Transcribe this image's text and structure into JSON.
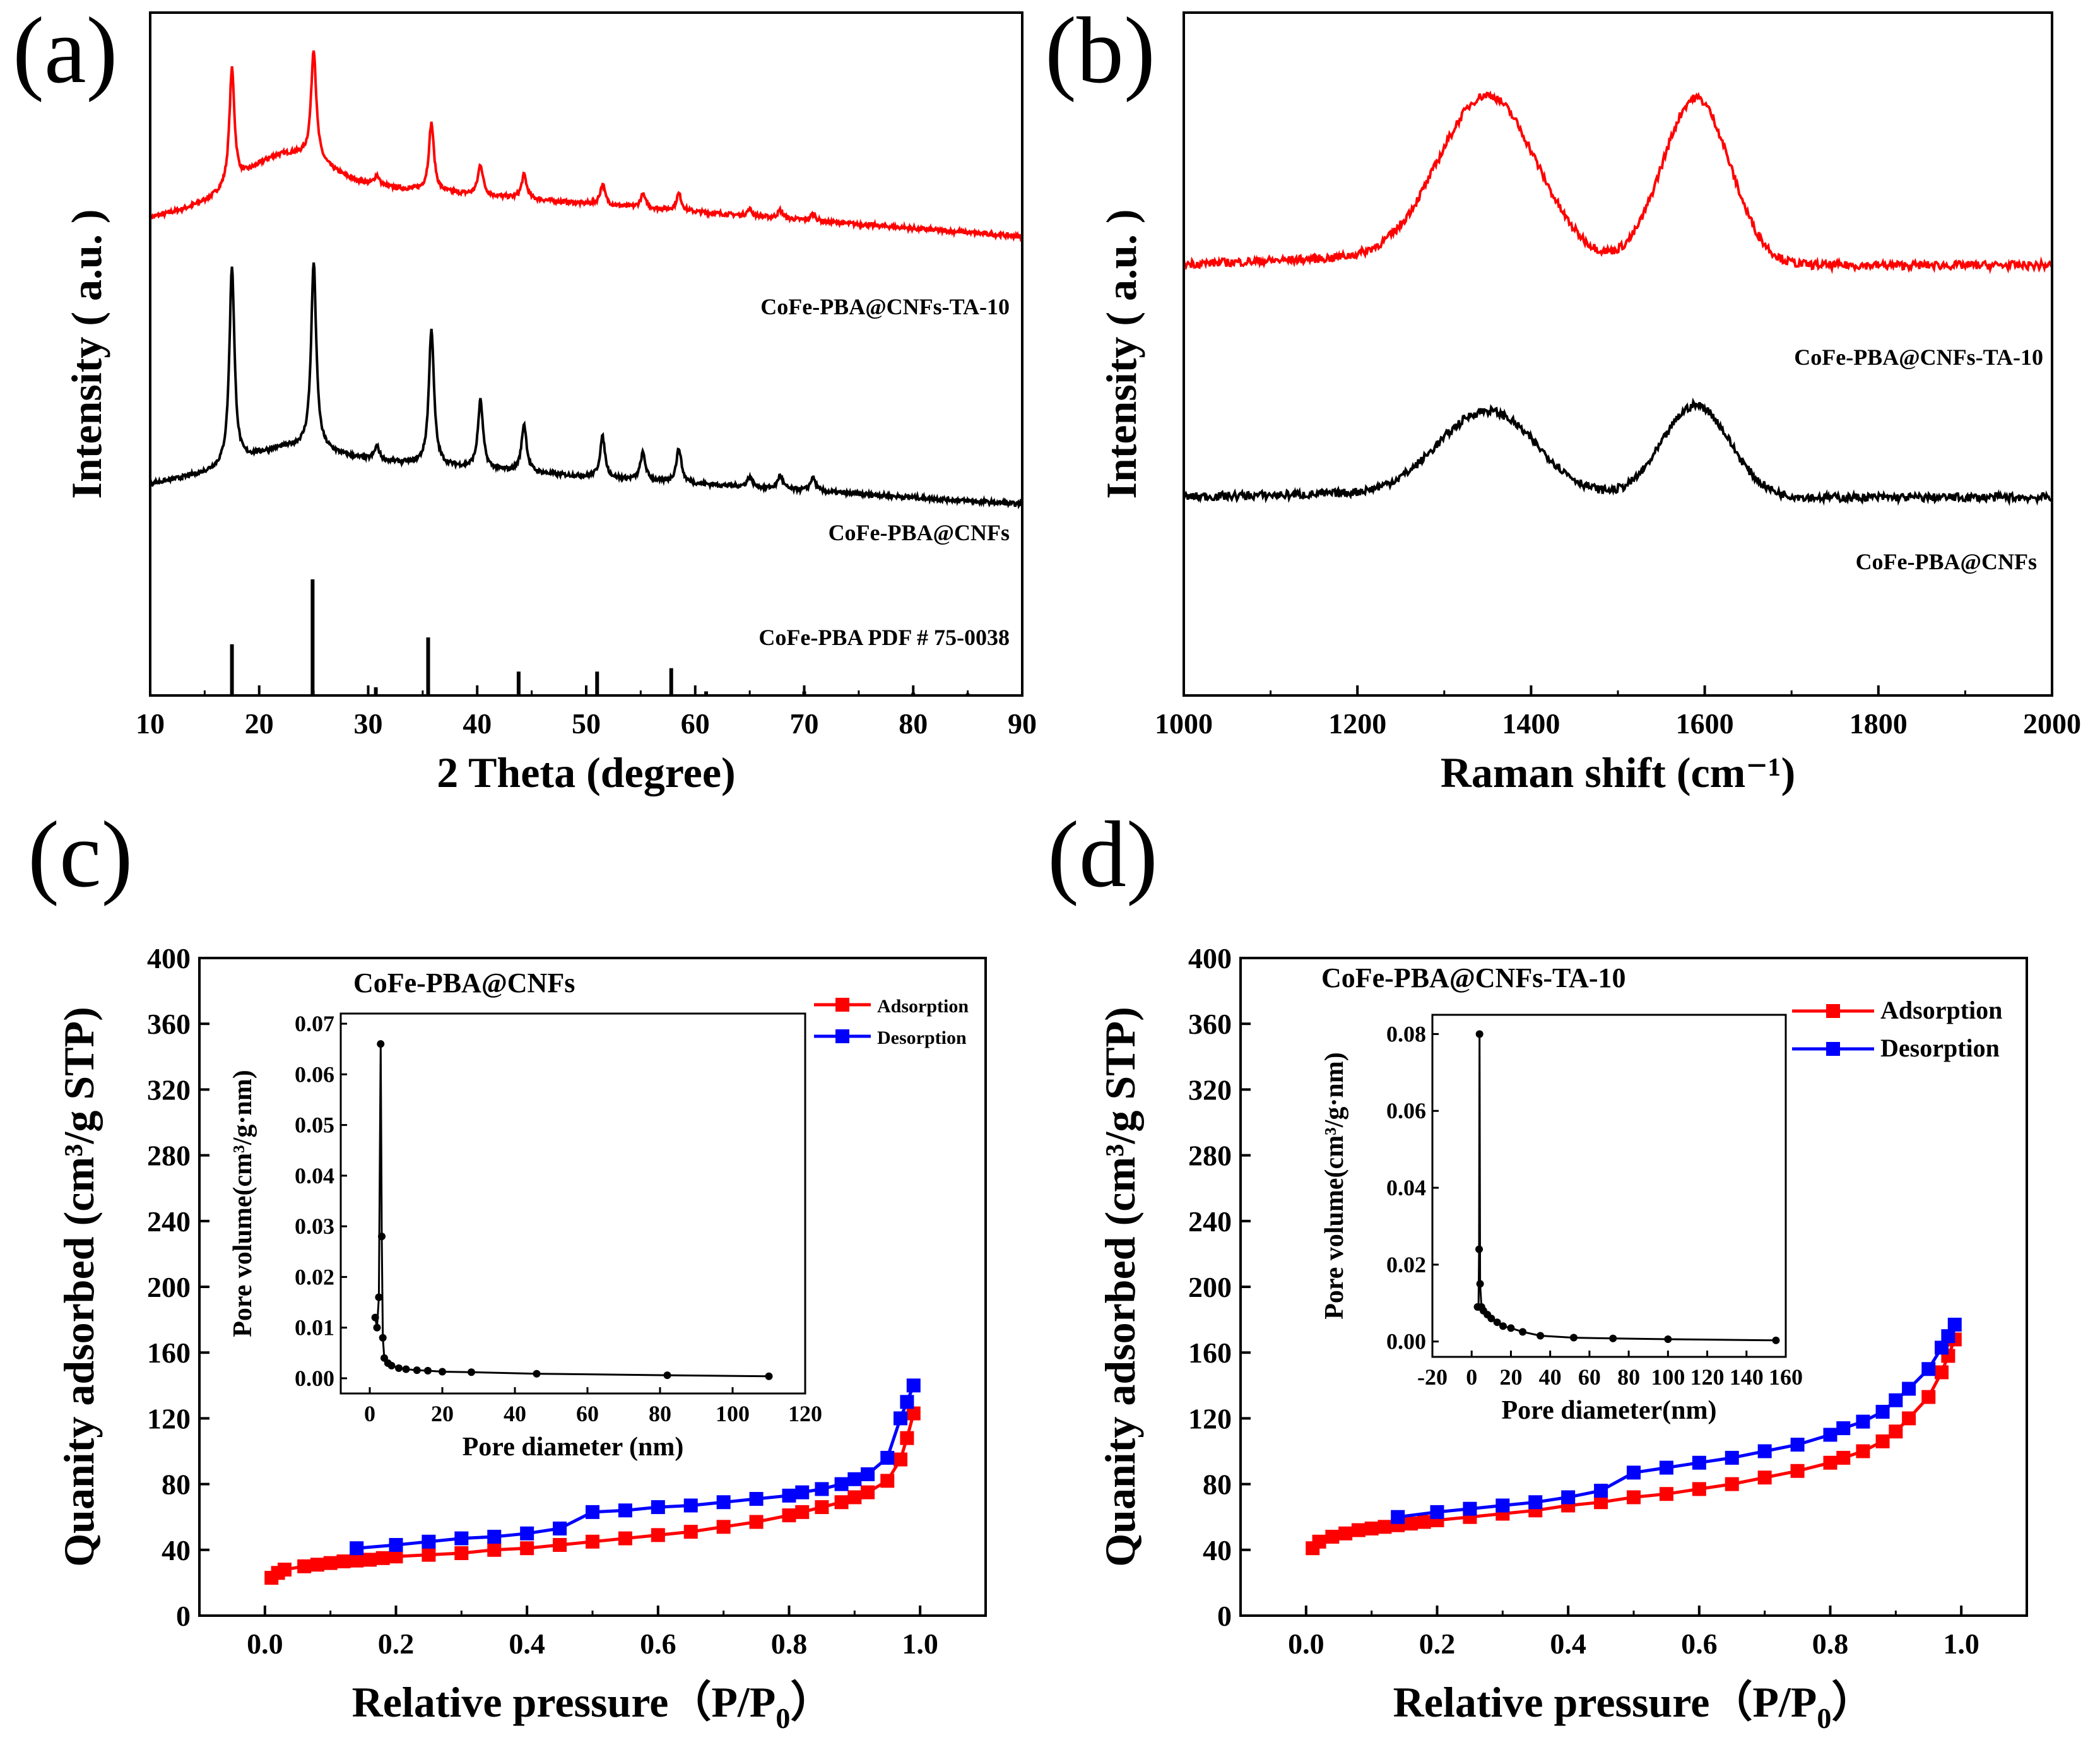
{
  "chart_data": [
    {
      "panel": "(a)",
      "type": "line",
      "xlabel": "2 Theta (degree)",
      "ylabel": "Intensity ( a.u. )",
      "xlim": [
        10,
        90
      ],
      "xticks": [
        "10",
        "20",
        "30",
        "40",
        "50",
        "60",
        "70",
        "80",
        "90"
      ],
      "series": [
        {
          "name": "CoFe-PBA@CNFs-TA-10",
          "color": "#ff0000",
          "baseline": [
            [
              10,
              0.7
            ],
            [
              25,
              0.752
            ],
            [
              50,
              0.72
            ],
            [
              90,
              0.672
            ]
          ],
          "peaks": [
            [
              17.5,
              0.17
            ],
            [
              25.0,
              0.16
            ],
            [
              30.8,
              0.015
            ],
            [
              35.8,
              0.1
            ],
            [
              40.3,
              0.045
            ],
            [
              44.3,
              0.035
            ],
            [
              51.5,
              0.03
            ],
            [
              55.2,
              0.02
            ],
            [
              58.5,
              0.025
            ],
            [
              65.0,
              0.01
            ],
            [
              67.8,
              0.012
            ],
            [
              70.8,
              0.01
            ]
          ],
          "hump": [
            22,
            0.05
          ]
        },
        {
          "name": "CoFe-PBA@CNFs",
          "color": "#000000",
          "baseline": [
            [
              10,
              0.31
            ],
            [
              25,
              0.35
            ],
            [
              50,
              0.32
            ],
            [
              90,
              0.28
            ]
          ],
          "peaks": [
            [
              17.5,
              0.29
            ],
            [
              25.0,
              0.27
            ],
            [
              30.8,
              0.02
            ],
            [
              35.8,
              0.2
            ],
            [
              40.3,
              0.1
            ],
            [
              44.3,
              0.07
            ],
            [
              51.5,
              0.06
            ],
            [
              55.2,
              0.04
            ],
            [
              58.5,
              0.05
            ],
            [
              65.0,
              0.015
            ],
            [
              67.8,
              0.02
            ],
            [
              70.8,
              0.02
            ]
          ],
          "hump": [
            22,
            0.02
          ]
        }
      ],
      "reference": {
        "name": "CoFe-PBA  PDF # 75-0038",
        "sticks": [
          [
            17.5,
            0.075
          ],
          [
            24.9,
            0.17
          ],
          [
            30.7,
            0.012
          ],
          [
            35.5,
            0.085
          ],
          [
            43.8,
            0.035
          ],
          [
            51.0,
            0.035
          ],
          [
            57.8,
            0.04
          ],
          [
            61.0,
            0.006
          ],
          [
            70.0,
            0.006
          ],
          [
            80.0,
            0.004
          ],
          [
            85.0,
            0.003
          ]
        ]
      }
    },
    {
      "panel": "(b)",
      "type": "line",
      "xlabel": "Raman shift (cm⁻¹)",
      "ylabel": "Intensity ( a.u. )",
      "xlim": [
        1000,
        2000
      ],
      "xticks": [
        "1000",
        "1200",
        "1400",
        "1600",
        "1800",
        "2000"
      ],
      "series": [
        {
          "name": "CoFe-PBA@CNFs-TA-10",
          "color": "#ff0000",
          "base": 0.63,
          "D": [
            1350,
            0.245
          ],
          "G": [
            1590,
            0.245
          ]
        },
        {
          "name": "CoFe-PBA@CNFs",
          "color": "#000000",
          "base": 0.29,
          "D": [
            1350,
            0.125
          ],
          "G": [
            1590,
            0.135
          ]
        }
      ]
    },
    {
      "panel": "(c)",
      "type": "line",
      "xlabel": "Relative pressure（P/P",
      "xlabel_sub": "0",
      "xlabel_end": "）",
      "ylabel": "Quanity adsorbed (cm³/g STP)",
      "xlim": [
        -0.1,
        1.1
      ],
      "ylim": [
        0,
        400
      ],
      "xticks": [
        "0.0",
        "0.2",
        "0.4",
        "0.6",
        "0.8",
        "1.0"
      ],
      "yticks": [
        "0",
        "40",
        "80",
        "120",
        "160",
        "200",
        "240",
        "280",
        "320",
        "360",
        "400"
      ],
      "legend": [
        "Adsorption",
        "Desorption"
      ],
      "series": [
        {
          "name": "Adsorption",
          "color": "#ff0000",
          "x": [
            0.01,
            0.02,
            0.03,
            0.06,
            0.08,
            0.1,
            0.12,
            0.14,
            0.16,
            0.18,
            0.2,
            0.25,
            0.3,
            0.35,
            0.4,
            0.45,
            0.5,
            0.55,
            0.6,
            0.65,
            0.7,
            0.75,
            0.8,
            0.82,
            0.85,
            0.88,
            0.9,
            0.92,
            0.95,
            0.97,
            0.98,
            0.99
          ],
          "y": [
            23,
            26,
            28,
            30,
            31,
            32,
            33,
            33.5,
            34,
            35,
            36,
            37,
            38,
            40,
            41,
            43,
            45,
            47,
            49,
            51,
            54,
            57,
            61,
            63,
            66,
            69,
            72,
            75,
            82,
            95,
            108,
            123
          ]
        },
        {
          "name": "Desorption",
          "color": "#0000ff",
          "x": [
            0.99,
            0.98,
            0.97,
            0.95,
            0.92,
            0.9,
            0.88,
            0.85,
            0.82,
            0.8,
            0.75,
            0.7,
            0.65,
            0.6,
            0.55,
            0.5,
            0.45,
            0.4,
            0.35,
            0.3,
            0.25,
            0.2,
            0.14
          ],
          "y": [
            140,
            130,
            120,
            96,
            86,
            83,
            80,
            77,
            75,
            73,
            71,
            69,
            67,
            66,
            64,
            63,
            53,
            50,
            48,
            47,
            45,
            43,
            41
          ]
        }
      ],
      "inset": {
        "title": "CoFe-PBA@CNFs",
        "xlabel": "Pore diameter (nm)",
        "ylabel": "Pore volume(cm³/g·nm)",
        "xlim": [
          -8,
          120
        ],
        "ylim": [
          -0.003,
          0.072
        ],
        "xticks": [
          "0",
          "20",
          "40",
          "60",
          "80",
          "100",
          "120"
        ],
        "yticks": [
          "0.00",
          "0.01",
          "0.02",
          "0.03",
          "0.04",
          "0.05",
          "0.06",
          "0.07"
        ],
        "x": [
          1.5,
          2.0,
          2.5,
          3.0,
          3.3,
          3.6,
          4.0,
          5.0,
          6.0,
          8.0,
          10.0,
          13.0,
          16.0,
          20.0,
          28.0,
          46.0,
          82.0,
          110.0
        ],
        "y": [
          0.012,
          0.01,
          0.016,
          0.066,
          0.028,
          0.008,
          0.004,
          0.003,
          0.0025,
          0.002,
          0.0018,
          0.0016,
          0.0015,
          0.0013,
          0.0012,
          0.0009,
          0.0006,
          0.0004
        ]
      }
    },
    {
      "panel": "(d)",
      "type": "line",
      "xlabel": "Relative pressure（P/P",
      "xlabel_sub": "0",
      "xlabel_end": "）",
      "ylabel": "Quanity adsorbed (cm³/g STP)",
      "xlim": [
        -0.1,
        1.1
      ],
      "ylim": [
        0,
        400
      ],
      "xticks": [
        "0.0",
        "0.2",
        "0.4",
        "0.6",
        "0.8",
        "1.0"
      ],
      "yticks": [
        "0",
        "40",
        "80",
        "120",
        "160",
        "200",
        "240",
        "280",
        "320",
        "360",
        "400"
      ],
      "legend": [
        "Adsorption",
        "Desorption"
      ],
      "series": [
        {
          "name": "Adsorption",
          "color": "#ff0000",
          "x": [
            0.01,
            0.02,
            0.04,
            0.06,
            0.08,
            0.1,
            0.12,
            0.14,
            0.16,
            0.18,
            0.2,
            0.25,
            0.3,
            0.35,
            0.4,
            0.45,
            0.5,
            0.55,
            0.6,
            0.65,
            0.7,
            0.75,
            0.8,
            0.82,
            0.85,
            0.88,
            0.9,
            0.92,
            0.95,
            0.97,
            0.98,
            0.99
          ],
          "y": [
            41,
            45,
            48,
            50,
            52,
            53,
            54,
            55,
            56,
            57,
            58,
            60,
            62,
            64,
            67,
            69,
            72,
            74,
            77,
            80,
            84,
            88,
            93,
            96,
            100,
            106,
            112,
            120,
            133,
            148,
            158,
            168
          ]
        },
        {
          "name": "Desorption",
          "color": "#0000ff",
          "x": [
            0.99,
            0.98,
            0.97,
            0.95,
            0.92,
            0.9,
            0.88,
            0.85,
            0.82,
            0.8,
            0.75,
            0.7,
            0.65,
            0.6,
            0.55,
            0.5,
            0.45,
            0.4,
            0.35,
            0.3,
            0.25,
            0.2,
            0.14
          ],
          "y": [
            177,
            170,
            163,
            150,
            138,
            131,
            124,
            118,
            114,
            110,
            104,
            100,
            96,
            93,
            90,
            87,
            76,
            72,
            69,
            67,
            65,
            63,
            60
          ]
        }
      ],
      "inset": {
        "title": "CoFe-PBA@CNFs-TA-10",
        "xlabel": "Pore diameter(nm)",
        "ylabel": "Pore volume(cm³/g·nm)",
        "xlim": [
          -20,
          160
        ],
        "ylim": [
          -0.004,
          0.085
        ],
        "xticks": [
          "-20",
          "0",
          "20",
          "40",
          "60",
          "80",
          "100",
          "120",
          "140",
          "160"
        ],
        "yticks": [
          "0.00",
          "0.02",
          "0.04",
          "0.06",
          "0.08"
        ],
        "x": [
          3.0,
          3.5,
          3.8,
          4.0,
          4.3,
          5.0,
          6.0,
          8.0,
          10.0,
          13.0,
          16.0,
          20.0,
          26.0,
          35.0,
          52.0,
          72.0,
          100.0,
          155.0
        ],
        "y": [
          0.009,
          0.009,
          0.024,
          0.08,
          0.015,
          0.009,
          0.008,
          0.007,
          0.006,
          0.005,
          0.004,
          0.0035,
          0.0025,
          0.0015,
          0.001,
          0.0008,
          0.0006,
          0.0003
        ]
      }
    }
  ]
}
